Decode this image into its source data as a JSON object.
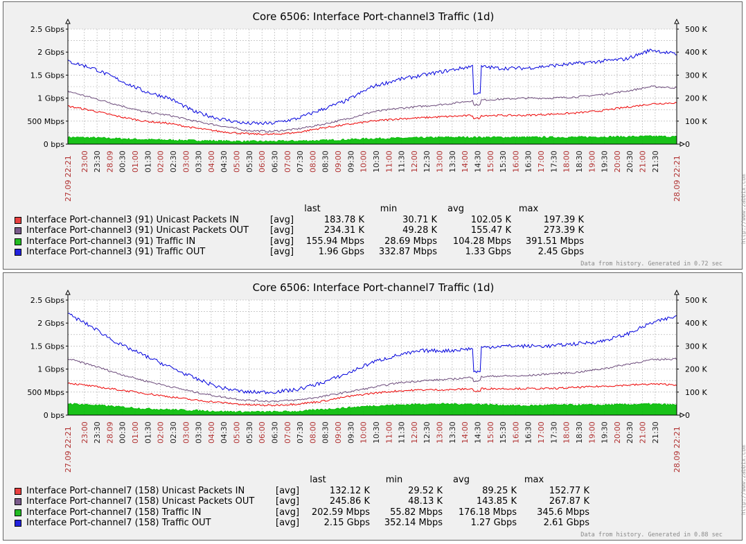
{
  "watermark": "http://www.zabbix.com",
  "legend_headers": {
    "last": "last",
    "min": "min",
    "avg": "avg",
    "max": "max"
  },
  "chart_data": [
    {
      "type": "line",
      "title": "Core 6506: Interface Port-channel3 Traffic  (1d)",
      "yleft": {
        "ticks": [
          "0 bps",
          "500 Mbps",
          "1 Gbps",
          "1.5 Gbps",
          "2 Gbps",
          "2.5 Gbps"
        ],
        "range_gbps": [
          0,
          2.5
        ]
      },
      "yright": {
        "ticks": [
          "0",
          "100 K",
          "200 K",
          "300 K",
          "400 K",
          "500 K"
        ],
        "range_k": [
          0,
          500
        ]
      },
      "x_start": "27.09 22:21",
      "x_end": "28.09 22:21",
      "x_ticks": [
        "23:00",
        "23:30",
        "28.09",
        "00:30",
        "01:00",
        "01:30",
        "02:00",
        "02:30",
        "03:00",
        "03:30",
        "04:00",
        "04:30",
        "05:00",
        "05:30",
        "06:00",
        "06:30",
        "07:00",
        "07:30",
        "08:00",
        "08:30",
        "09:00",
        "09:30",
        "10:00",
        "10:30",
        "11:00",
        "11:30",
        "12:00",
        "12:30",
        "13:00",
        "13:30",
        "14:00",
        "14:30",
        "15:00",
        "15:30",
        "16:00",
        "16:30",
        "17:00",
        "17:30",
        "18:00",
        "18:30",
        "19:00",
        "19:30",
        "20:00",
        "20:30",
        "21:00",
        "21:30"
      ],
      "footer": "Data from history. Generated in 0.72 sec",
      "series": [
        {
          "name": "Interface Port-channel3 (91) Unicast Packets IN",
          "func": "[avg]",
          "color": "#ee0000",
          "axis": "right",
          "stats": {
            "last": "183.78 K",
            "min": "30.71 K",
            "avg": "102.05 K",
            "max": "197.39 K"
          },
          "hourly": [
            165,
            145,
            120,
            100,
            90,
            70,
            55,
            45,
            42,
            50,
            70,
            85,
            100,
            110,
            115,
            120,
            125,
            125,
            125,
            130,
            135,
            145,
            160,
            175,
            180
          ]
        },
        {
          "name": "Interface Port-channel3 (91) Unicast Packets OUT",
          "func": "[avg]",
          "color": "#6b4a7a",
          "axis": "right",
          "stats": {
            "last": "234.31 K",
            "min": "49.28 K",
            "avg": "155.47 K",
            "max": "273.39 K"
          },
          "hourly": [
            230,
            200,
            170,
            140,
            125,
            100,
            80,
            60,
            55,
            65,
            85,
            110,
            140,
            155,
            165,
            175,
            190,
            195,
            200,
            200,
            205,
            215,
            230,
            250,
            245
          ]
        },
        {
          "name": "Interface Port-channel3 (91) Traffic IN",
          "func": "[avg]",
          "color": "#00bb00",
          "axis": "left",
          "fill": true,
          "stats": {
            "last": "155.94 Mbps",
            "min": "28.69 Mbps",
            "avg": "104.28 Mbps",
            "max": "391.51 Mbps"
          },
          "hourly": [
            0.15,
            0.14,
            0.12,
            0.1,
            0.09,
            0.08,
            0.07,
            0.06,
            0.06,
            0.07,
            0.08,
            0.1,
            0.12,
            0.13,
            0.14,
            0.15,
            0.15,
            0.15,
            0.15,
            0.15,
            0.15,
            0.16,
            0.16,
            0.17,
            0.16
          ]
        },
        {
          "name": "Interface Port-channel3 (91) Traffic OUT",
          "func": "[avg]",
          "color": "#0000dd",
          "axis": "left",
          "stats": {
            "last": "1.96 Gbps",
            "min": "332.87 Mbps",
            "avg": "1.33 Gbps",
            "max": "2.45 Gbps"
          },
          "hourly": [
            1.8,
            1.65,
            1.4,
            1.15,
            1.0,
            0.7,
            0.55,
            0.45,
            0.45,
            0.55,
            0.75,
            0.95,
            1.25,
            1.4,
            1.5,
            1.6,
            1.7,
            1.65,
            1.65,
            1.7,
            1.75,
            1.8,
            1.85,
            2.05,
            1.95
          ]
        }
      ]
    },
    {
      "type": "line",
      "title": "Core 6506: Interface Port-channel7 Traffic  (1d)",
      "yleft": {
        "ticks": [
          "0 bps",
          "500 Mbps",
          "1 Gbps",
          "1.5 Gbps",
          "2 Gbps",
          "2.5 Gbps"
        ],
        "range_gbps": [
          0,
          2.5
        ]
      },
      "yright": {
        "ticks": [
          "0",
          "100 K",
          "200 K",
          "300 K",
          "400 K",
          "500 K"
        ],
        "range_k": [
          0,
          500
        ]
      },
      "x_start": "27.09 22:21",
      "x_end": "28.09 22:21",
      "x_ticks": [
        "23:00",
        "23:30",
        "28.09",
        "00:30",
        "01:00",
        "01:30",
        "02:00",
        "02:30",
        "03:00",
        "03:30",
        "04:00",
        "04:30",
        "05:00",
        "05:30",
        "06:00",
        "06:30",
        "07:00",
        "07:30",
        "08:00",
        "08:30",
        "09:00",
        "09:30",
        "10:00",
        "10:30",
        "11:00",
        "11:30",
        "12:00",
        "12:30",
        "13:00",
        "13:30",
        "14:00",
        "14:30",
        "15:00",
        "15:30",
        "16:00",
        "16:30",
        "17:00",
        "17:30",
        "18:00",
        "18:30",
        "19:00",
        "19:30",
        "20:00",
        "20:30",
        "21:00",
        "21:30"
      ],
      "footer": "Data from history. Generated in 0.88 sec",
      "series": [
        {
          "name": "Interface Port-channel7 (158) Unicast Packets IN",
          "func": "[avg]",
          "color": "#ee0000",
          "axis": "right",
          "stats": {
            "last": "132.12 K",
            "min": "29.52 K",
            "avg": "89.25 K",
            "max": "152.77 K"
          },
          "hourly": [
            140,
            125,
            110,
            95,
            80,
            65,
            55,
            45,
            42,
            48,
            60,
            80,
            95,
            105,
            110,
            110,
            115,
            115,
            115,
            115,
            120,
            125,
            130,
            135,
            132
          ]
        },
        {
          "name": "Interface Port-channel7 (158) Unicast Packets OUT",
          "func": "[avg]",
          "color": "#6b4a7a",
          "axis": "right",
          "stats": {
            "last": "245.86 K",
            "min": "48.13 K",
            "avg": "143.85 K",
            "max": "267.87 K"
          },
          "hourly": [
            245,
            215,
            180,
            150,
            125,
            100,
            80,
            65,
            60,
            65,
            80,
            100,
            120,
            140,
            150,
            155,
            165,
            170,
            170,
            180,
            185,
            200,
            220,
            240,
            245
          ]
        },
        {
          "name": "Interface Port-channel7 (158) Traffic IN",
          "func": "[avg]",
          "color": "#00bb00",
          "axis": "left",
          "fill": true,
          "stats": {
            "last": "202.59 Mbps",
            "min": "55.82 Mbps",
            "avg": "176.18 Mbps",
            "max": "345.6 Mbps"
          },
          "hourly": [
            0.25,
            0.22,
            0.18,
            0.14,
            0.12,
            0.1,
            0.08,
            0.07,
            0.07,
            0.08,
            0.12,
            0.16,
            0.2,
            0.22,
            0.24,
            0.24,
            0.24,
            0.22,
            0.2,
            0.22,
            0.22,
            0.22,
            0.23,
            0.24,
            0.22
          ]
        },
        {
          "name": "Interface Port-channel7 (158) Traffic OUT",
          "func": "[avg]",
          "color": "#0000dd",
          "axis": "left",
          "stats": {
            "last": "2.15 Gbps",
            "min": "352.14 Mbps",
            "avg": "1.27 Gbps",
            "max": "2.61 Gbps"
          },
          "hourly": [
            2.2,
            1.9,
            1.55,
            1.3,
            1.05,
            0.8,
            0.6,
            0.5,
            0.5,
            0.55,
            0.7,
            0.9,
            1.15,
            1.3,
            1.4,
            1.4,
            1.45,
            1.5,
            1.5,
            1.5,
            1.55,
            1.6,
            1.75,
            2.0,
            2.15
          ]
        }
      ]
    }
  ]
}
